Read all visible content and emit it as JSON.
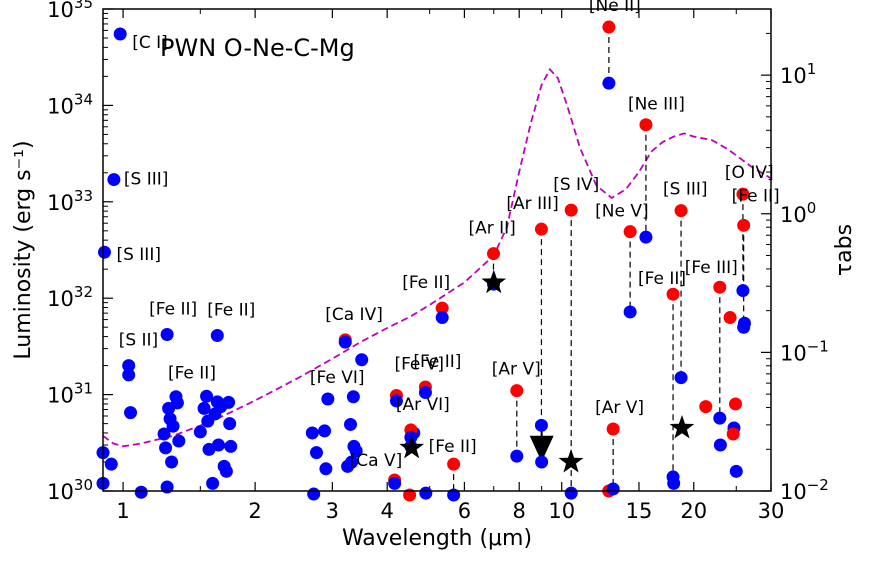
{
  "chart_data": {
    "type": "scatter",
    "title": "PWN O-Ne-C-Mg",
    "xlabel": "Wavelength (μm)",
    "ylabel": "Luminosity (erg s⁻¹)",
    "y2label": "τabs",
    "xscale": "log",
    "yscale": "log",
    "xlim": [
      0.9,
      30
    ],
    "ylim": [
      1e+30,
      1e+35
    ],
    "y2lim": [
      0.01,
      30
    ],
    "x_ticks": [
      {
        "v": 1,
        "label": "1"
      },
      {
        "v": 2,
        "label": "2"
      },
      {
        "v": 3,
        "label": "3"
      },
      {
        "v": 4,
        "label": "4"
      },
      {
        "v": 6,
        "label": "6"
      },
      {
        "v": 8,
        "label": "8"
      },
      {
        "v": 10,
        "label": "10"
      },
      {
        "v": 15,
        "label": "15"
      },
      {
        "v": 20,
        "label": "20"
      },
      {
        "v": 30,
        "label": "30"
      }
    ],
    "y_ticks": [
      {
        "v": 1e+30,
        "base": "10",
        "exp": "30"
      },
      {
        "v": 1e+31,
        "base": "10",
        "exp": "31"
      },
      {
        "v": 1e+32,
        "base": "10",
        "exp": "32"
      },
      {
        "v": 1e+33,
        "base": "10",
        "exp": "33"
      },
      {
        "v": 1e+34,
        "base": "10",
        "exp": "34"
      },
      {
        "v": 1e+35,
        "base": "10",
        "exp": "35"
      }
    ],
    "y2_ticks": [
      {
        "v": 0.01,
        "base": "10",
        "exp": "−2"
      },
      {
        "v": 0.1,
        "base": "10",
        "exp": "−1"
      },
      {
        "v": 1,
        "base": "10",
        "exp": "0"
      },
      {
        "v": 10,
        "base": "10",
        "exp": "1"
      }
    ],
    "colors": {
      "observed": "#ff0000",
      "absorbed": "#0000ff",
      "tau": "#c000c0",
      "star": "#000000"
    },
    "lines": [
      {
        "label": "[C I]",
        "x": 0.985,
        "y_intrinsic": null,
        "y_absorbed": 5.5e+34
      },
      {
        "label": "[S III]",
        "x": 0.953,
        "y_intrinsic": null,
        "y_absorbed": 1.7e+33
      },
      {
        "label": "[S III]",
        "x": 0.907,
        "y_intrinsic": null,
        "y_absorbed": 3e+32
      },
      {
        "label": "[S II]",
        "x": 1.03,
        "y_intrinsic": null,
        "y_absorbed": 2e+31
      },
      {
        "label": "[Fe II]",
        "x": 1.26,
        "y_intrinsic": null,
        "y_absorbed": 4.2e+31
      },
      {
        "label": "[Fe II]",
        "x": 1.64,
        "y_intrinsic": null,
        "y_absorbed": 4.1e+31
      },
      {
        "label": "[Ca IV]",
        "x": 3.21,
        "y_intrinsic": 3.7e+31,
        "y_absorbed": 3.5e+31
      },
      {
        "label": "[Fe II]",
        "x": 5.34,
        "y_intrinsic": 7.9e+31,
        "y_absorbed": 6.3e+31
      },
      {
        "label": "[Ar II]",
        "x": 6.99,
        "y_intrinsic": 2.9e+32,
        "y_absorbed": 1.4e+32
      },
      {
        "label": "[Ar III]",
        "x": 8.99,
        "y_intrinsic": 5.2e+32,
        "y_absorbed": 4.8e+30
      },
      {
        "label": "[S IV]",
        "x": 10.51,
        "y_intrinsic": 8.2e+32,
        "y_absorbed": 9.5e+29
      },
      {
        "label": "[Ne II]",
        "x": 12.81,
        "y_intrinsic": 6.5e+34,
        "y_absorbed": 1.7e+34
      },
      {
        "label": "[Ne V]",
        "x": 14.32,
        "y_intrinsic": 4.9e+32,
        "y_absorbed": 7.2e+31
      },
      {
        "label": "[Ne III]",
        "x": 15.56,
        "y_intrinsic": 6.3e+33,
        "y_absorbed": 4.3e+32
      },
      {
        "label": "[Fe II]",
        "x": 17.94,
        "y_intrinsic": 1.1e+32,
        "y_absorbed": 1.4e+30
      },
      {
        "label": "[S III]",
        "x": 18.71,
        "y_intrinsic": 8.1e+32,
        "y_absorbed": 1.5e+31
      },
      {
        "label": "[Fe III]",
        "x": 22.93,
        "y_intrinsic": 1.3e+32,
        "y_absorbed": 5.7e+30
      },
      {
        "label": "[O IV]",
        "x": 25.89,
        "y_intrinsic": 1.2e+33,
        "y_absorbed": 1.2e+32
      },
      {
        "label": "[Fe II]",
        "x": 25.99,
        "y_intrinsic": 5.7e+32,
        "y_absorbed": 5e+31
      },
      {
        "label": "[Fe V]",
        "x": 4.2,
        "y_intrinsic": 9.8e+30,
        "y_absorbed": 8.6e+30
      },
      {
        "label": "[Fe VI]",
        "x": 2.93,
        "y_intrinsic": null,
        "y_absorbed": 9e+30
      },
      {
        "label": "[Ca V]",
        "x": 4.16,
        "y_intrinsic": 1.3e+30,
        "y_absorbed": 1.2e+30
      },
      {
        "label": "[Fe II]",
        "x": 4.89,
        "y_intrinsic": 1.2e+31,
        "y_absorbed": 1.05e+31
      },
      {
        "label": "[Ar VI]",
        "x": 4.53,
        "y_intrinsic": 4.3e+30,
        "y_absorbed": 3.6e+30
      },
      {
        "label": "[Fe II]",
        "x": 5.67,
        "y_intrinsic": 1.9e+30,
        "y_absorbed": 6.2e+29
      },
      {
        "label": "[Ar V]",
        "x": 7.9,
        "y_intrinsic": 1.1e+31,
        "y_absorbed": 2.3e+30
      },
      {
        "label": "[Ar V]",
        "x": 13.1,
        "y_intrinsic": 4.4e+30,
        "y_absorbed": 1.05e+30
      },
      {
        "label": "[Fe II]",
        "x": 1.32,
        "y_intrinsic": null,
        "y_absorbed": 9.5e+30
      }
    ],
    "extra_intrinsic": [
      {
        "x": 4.5,
        "y": 9e+29
      },
      {
        "x": 21.3,
        "y": 7.5e+30
      },
      {
        "x": 24.2,
        "y": 6.3e+31
      },
      {
        "x": 24.6,
        "y": 3.9e+30
      },
      {
        "x": 24.9,
        "y": 8e+30
      },
      {
        "x": 12.8,
        "y": 1e+30
      }
    ],
    "extra_absorbed": [
      {
        "x": 0.9,
        "y": 2.5e+30
      },
      {
        "x": 0.9,
        "y": 1.2e+30
      },
      {
        "x": 0.94,
        "y": 1.9e+30
      },
      {
        "x": 1.03,
        "y": 1.6e+31
      },
      {
        "x": 1.04,
        "y": 6.5e+30
      },
      {
        "x": 1.1,
        "y": 9.7e+29
      },
      {
        "x": 1.24,
        "y": 3.9e+30
      },
      {
        "x": 1.25,
        "y": 2.8e+30
      },
      {
        "x": 1.26,
        "y": 1.1e+30
      },
      {
        "x": 1.27,
        "y": 7.2e+30
      },
      {
        "x": 1.28,
        "y": 5.6e+30
      },
      {
        "x": 1.29,
        "y": 2e+30
      },
      {
        "x": 1.3,
        "y": 4.7e+30
      },
      {
        "x": 1.33,
        "y": 8.2e+30
      },
      {
        "x": 1.34,
        "y": 3.3e+30
      },
      {
        "x": 1.5,
        "y": 4.1e+30
      },
      {
        "x": 1.53,
        "y": 7.2e+30
      },
      {
        "x": 1.55,
        "y": 9.6e+30
      },
      {
        "x": 1.56,
        "y": 5.3e+30
      },
      {
        "x": 1.57,
        "y": 2.7e+30
      },
      {
        "x": 1.6,
        "y": 1.2e+30
      },
      {
        "x": 1.62,
        "y": 6.3e+30
      },
      {
        "x": 1.64,
        "y": 8.4e+30
      },
      {
        "x": 1.65,
        "y": 3e+30
      },
      {
        "x": 1.67,
        "y": 7.5e+30
      },
      {
        "x": 1.7,
        "y": 1.8e+30
      },
      {
        "x": 1.72,
        "y": 1.6e+30
      },
      {
        "x": 1.74,
        "y": 8.3e+30
      },
      {
        "x": 1.75,
        "y": 5e+30
      },
      {
        "x": 1.76,
        "y": 2.9e+30
      },
      {
        "x": 2.7,
        "y": 4e+30
      },
      {
        "x": 2.72,
        "y": 9.3e+29
      },
      {
        "x": 2.76,
        "y": 2.5e+30
      },
      {
        "x": 2.88,
        "y": 4.2e+30
      },
      {
        "x": 2.9,
        "y": 1.7e+30
      },
      {
        "x": 3.25,
        "y": 1.8e+30
      },
      {
        "x": 3.3,
        "y": 4.9e+30
      },
      {
        "x": 3.32,
        "y": 2e+30
      },
      {
        "x": 3.36,
        "y": 2.9e+30
      },
      {
        "x": 3.4,
        "y": 2.6e+30
      },
      {
        "x": 3.35,
        "y": 9.5e+30
      },
      {
        "x": 3.5,
        "y": 2.3e+31
      },
      {
        "x": 4.53,
        "y": 2.9e+30
      },
      {
        "x": 4.6,
        "y": 4e+30
      },
      {
        "x": 4.9,
        "y": 9.5e+29
      },
      {
        "x": 9.0,
        "y": 2e+30
      },
      {
        "x": 18.0,
        "y": 1.2e+30
      },
      {
        "x": 23.0,
        "y": 3e+30
      },
      {
        "x": 24.7,
        "y": 4.5e+30
      },
      {
        "x": 25.0,
        "y": 1.6e+30
      },
      {
        "x": 26.1,
        "y": 5.5e+31
      }
    ],
    "upper_limits": [
      {
        "x": 4.55,
        "y": 2.8e+30
      },
      {
        "x": 7.0,
        "y": 1.45e+32
      },
      {
        "x": 10.5,
        "y": 2e+30
      },
      {
        "x": 18.8,
        "y": 4.5e+30
      }
    ],
    "arrows": [
      {
        "x": 9.0,
        "y": 3.4e+30
      }
    ],
    "tau_curve": [
      {
        "x": 0.9,
        "y": 0.025
      },
      {
        "x": 0.95,
        "y": 0.022
      },
      {
        "x": 1.0,
        "y": 0.021
      },
      {
        "x": 1.1,
        "y": 0.022
      },
      {
        "x": 1.3,
        "y": 0.025
      },
      {
        "x": 1.6,
        "y": 0.032
      },
      {
        "x": 2.0,
        "y": 0.045
      },
      {
        "x": 2.5,
        "y": 0.065
      },
      {
        "x": 3.0,
        "y": 0.09
      },
      {
        "x": 3.5,
        "y": 0.12
      },
      {
        "x": 4.0,
        "y": 0.15
      },
      {
        "x": 4.5,
        "y": 0.18
      },
      {
        "x": 5.0,
        "y": 0.22
      },
      {
        "x": 6.0,
        "y": 0.32
      },
      {
        "x": 7.0,
        "y": 0.5
      },
      {
        "x": 7.5,
        "y": 0.8
      },
      {
        "x": 8.0,
        "y": 2.0
      },
      {
        "x": 8.5,
        "y": 4.5
      },
      {
        "x": 9.0,
        "y": 8.5
      },
      {
        "x": 9.4,
        "y": 11
      },
      {
        "x": 9.8,
        "y": 9.5
      },
      {
        "x": 10.3,
        "y": 6.0
      },
      {
        "x": 11.0,
        "y": 3.0
      },
      {
        "x": 12.0,
        "y": 1.6
      },
      {
        "x": 13.0,
        "y": 1.3
      },
      {
        "x": 14.0,
        "y": 1.5
      },
      {
        "x": 15.0,
        "y": 2.0
      },
      {
        "x": 16.0,
        "y": 2.8
      },
      {
        "x": 17.0,
        "y": 3.3
      },
      {
        "x": 18.0,
        "y": 3.6
      },
      {
        "x": 19.0,
        "y": 3.8
      },
      {
        "x": 20.0,
        "y": 3.6
      },
      {
        "x": 22.0,
        "y": 3.4
      },
      {
        "x": 24.0,
        "y": 2.9
      },
      {
        "x": 27.0,
        "y": 2.2
      },
      {
        "x": 30.0,
        "y": 1.8
      }
    ]
  }
}
